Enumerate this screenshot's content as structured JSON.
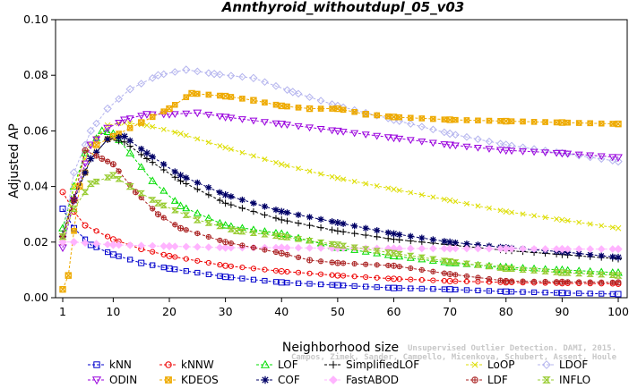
{
  "chart_data": {
    "type": "line",
    "title": "Annthyroid_withoutdupl_05_v03",
    "xlabel": "Neighborhood size",
    "ylabel": "Adjusted AP",
    "xlim": [
      1,
      100
    ],
    "ylim": [
      0,
      0.1
    ],
    "xticks": [
      "1",
      "10",
      "20",
      "30",
      "40",
      "50",
      "60",
      "70",
      "80",
      "90",
      "100"
    ],
    "yticks": [
      "0.00",
      "0.02",
      "0.04",
      "0.06",
      "0.08",
      "0.10"
    ],
    "grid": false,
    "legend_position": "bottom",
    "credit": [
      "Campos, Zimek, Sander, Campello, Micenkova, Schubert, Assent, Houle",
      "Unsupervised Outlier Detection. DAMI, 2015."
    ],
    "series": [
      {
        "name": "kNN",
        "color": "#0000cc",
        "marker": "square",
        "anchors": [
          [
            1,
            0.032
          ],
          [
            3,
            0.025
          ],
          [
            6,
            0.019
          ],
          [
            10,
            0.0155
          ],
          [
            15,
            0.0125
          ],
          [
            20,
            0.0105
          ],
          [
            30,
            0.0075
          ],
          [
            40,
            0.0055
          ],
          [
            50,
            0.0045
          ],
          [
            60,
            0.0035
          ],
          [
            70,
            0.003
          ],
          [
            80,
            0.0022
          ],
          [
            90,
            0.0017
          ],
          [
            100,
            0.0013
          ]
        ]
      },
      {
        "name": "kNNW",
        "color": "#ee0000",
        "marker": "circle",
        "anchors": [
          [
            1,
            0.038
          ],
          [
            3,
            0.031
          ],
          [
            5,
            0.026
          ],
          [
            10,
            0.021
          ],
          [
            15,
            0.0175
          ],
          [
            20,
            0.015
          ],
          [
            30,
            0.0115
          ],
          [
            40,
            0.0095
          ],
          [
            50,
            0.008
          ],
          [
            60,
            0.0068
          ],
          [
            70,
            0.006
          ],
          [
            80,
            0.0055
          ],
          [
            90,
            0.0052
          ],
          [
            100,
            0.005
          ]
        ]
      },
      {
        "name": "LOF",
        "color": "#00dd00",
        "marker": "triangle",
        "anchors": [
          [
            1,
            0.025
          ],
          [
            3,
            0.04
          ],
          [
            5,
            0.052
          ],
          [
            8,
            0.06
          ],
          [
            10,
            0.059
          ],
          [
            13,
            0.052
          ],
          [
            17,
            0.042
          ],
          [
            22,
            0.033
          ],
          [
            30,
            0.026
          ],
          [
            40,
            0.023
          ],
          [
            50,
            0.018
          ],
          [
            60,
            0.015
          ],
          [
            70,
            0.0125
          ],
          [
            80,
            0.011
          ],
          [
            90,
            0.01
          ],
          [
            100,
            0.009
          ]
        ]
      },
      {
        "name": "SimplifiedLOF",
        "color": "#000000",
        "marker": "plus",
        "anchors": [
          [
            1,
            0.023
          ],
          [
            3,
            0.036
          ],
          [
            6,
            0.05
          ],
          [
            9,
            0.057
          ],
          [
            12,
            0.056
          ],
          [
            16,
            0.05
          ],
          [
            22,
            0.042
          ],
          [
            30,
            0.034
          ],
          [
            40,
            0.028
          ],
          [
            50,
            0.024
          ],
          [
            60,
            0.021
          ],
          [
            70,
            0.019
          ],
          [
            80,
            0.017
          ],
          [
            90,
            0.0155
          ],
          [
            100,
            0.014
          ]
        ]
      },
      {
        "name": "LoOP",
        "color": "#dddd00",
        "marker": "x",
        "anchors": [
          [
            1,
            0.02
          ],
          [
            3,
            0.04
          ],
          [
            6,
            0.055
          ],
          [
            9,
            0.062
          ],
          [
            12,
            0.063
          ],
          [
            16,
            0.062
          ],
          [
            22,
            0.059
          ],
          [
            30,
            0.054
          ],
          [
            40,
            0.048
          ],
          [
            50,
            0.043
          ],
          [
            60,
            0.039
          ],
          [
            70,
            0.035
          ],
          [
            80,
            0.031
          ],
          [
            90,
            0.028
          ],
          [
            100,
            0.025
          ]
        ]
      },
      {
        "name": "LDOF",
        "color": "#b4b4ee",
        "marker": "diamond",
        "anchors": [
          [
            1,
            0.022
          ],
          [
            3,
            0.045
          ],
          [
            6,
            0.06
          ],
          [
            9,
            0.068
          ],
          [
            13,
            0.075
          ],
          [
            18,
            0.08
          ],
          [
            23,
            0.082
          ],
          [
            28,
            0.0805
          ],
          [
            35,
            0.079
          ],
          [
            42,
            0.074
          ],
          [
            50,
            0.069
          ],
          [
            60,
            0.064
          ],
          [
            70,
            0.059
          ],
          [
            80,
            0.055
          ],
          [
            90,
            0.052
          ],
          [
            100,
            0.049
          ]
        ]
      },
      {
        "name": "ODIN",
        "color": "#9900dd",
        "marker": "triangle-down",
        "anchors": [
          [
            1,
            0.018
          ],
          [
            3,
            0.035
          ],
          [
            6,
            0.055
          ],
          [
            9,
            0.061
          ],
          [
            12,
            0.064
          ],
          [
            16,
            0.066
          ],
          [
            20,
            0.066
          ],
          [
            25,
            0.0665
          ],
          [
            30,
            0.065
          ],
          [
            40,
            0.0625
          ],
          [
            50,
            0.06
          ],
          [
            60,
            0.0575
          ],
          [
            70,
            0.055
          ],
          [
            80,
            0.053
          ],
          [
            90,
            0.052
          ],
          [
            100,
            0.0505
          ]
        ]
      },
      {
        "name": "KDEOS",
        "color": "#eeaa00",
        "marker": "square-x",
        "anchors": [
          [
            1,
            0.003
          ],
          [
            2,
            0.008
          ],
          [
            4,
            0.04
          ],
          [
            7,
            0.055
          ],
          [
            10,
            0.058
          ],
          [
            15,
            0.063
          ],
          [
            20,
            0.068
          ],
          [
            24,
            0.0735
          ],
          [
            30,
            0.0725
          ],
          [
            35,
            0.071
          ],
          [
            40,
            0.069
          ],
          [
            45,
            0.068
          ],
          [
            50,
            0.068
          ],
          [
            55,
            0.066
          ],
          [
            60,
            0.065
          ],
          [
            70,
            0.064
          ],
          [
            80,
            0.0635
          ],
          [
            90,
            0.063
          ],
          [
            100,
            0.0625
          ]
        ]
      },
      {
        "name": "COF",
        "color": "#000066",
        "marker": "star",
        "anchors": [
          [
            1,
            0.022
          ],
          [
            3,
            0.035
          ],
          [
            6,
            0.05
          ],
          [
            9,
            0.057
          ],
          [
            12,
            0.058
          ],
          [
            16,
            0.052
          ],
          [
            22,
            0.044
          ],
          [
            30,
            0.037
          ],
          [
            40,
            0.031
          ],
          [
            50,
            0.027
          ],
          [
            60,
            0.023
          ],
          [
            70,
            0.02
          ],
          [
            80,
            0.018
          ],
          [
            90,
            0.0165
          ],
          [
            100,
            0.0145
          ]
        ]
      },
      {
        "name": "FastABOD",
        "color": "#ffb4ff",
        "marker": "diamond-filled",
        "anchors": [
          [
            1,
            0.02
          ],
          [
            3,
            0.02
          ],
          [
            10,
            0.019
          ],
          [
            20,
            0.0185
          ],
          [
            30,
            0.018
          ],
          [
            40,
            0.018
          ],
          [
            50,
            0.0178
          ],
          [
            60,
            0.0177
          ],
          [
            70,
            0.0177
          ],
          [
            80,
            0.0176
          ],
          [
            90,
            0.0175
          ],
          [
            100,
            0.0175
          ]
        ]
      },
      {
        "name": "LDF",
        "color": "#aa2222",
        "marker": "circle-cross",
        "anchors": [
          [
            1,
            0.022
          ],
          [
            3,
            0.035
          ],
          [
            5,
            0.053
          ],
          [
            8,
            0.05
          ],
          [
            10,
            0.048
          ],
          [
            14,
            0.038
          ],
          [
            18,
            0.03
          ],
          [
            22,
            0.025
          ],
          [
            30,
            0.02
          ],
          [
            40,
            0.016
          ],
          [
            45,
            0.0135
          ],
          [
            50,
            0.0125
          ],
          [
            60,
            0.0115
          ],
          [
            70,
            0.0085
          ],
          [
            80,
            0.006
          ],
          [
            90,
            0.0057
          ],
          [
            100,
            0.0055
          ]
        ]
      },
      {
        "name": "INFLO",
        "color": "#99cc33",
        "marker": "hourglass",
        "anchors": [
          [
            1,
            0.022
          ],
          [
            3,
            0.032
          ],
          [
            6,
            0.041
          ],
          [
            10,
            0.044
          ],
          [
            13,
            0.04
          ],
          [
            18,
            0.034
          ],
          [
            25,
            0.028
          ],
          [
            32,
            0.024
          ],
          [
            40,
            0.022
          ],
          [
            50,
            0.019
          ],
          [
            60,
            0.016
          ],
          [
            70,
            0.013
          ],
          [
            80,
            0.0105
          ],
          [
            90,
            0.009
          ],
          [
            100,
            0.008
          ]
        ]
      }
    ]
  }
}
